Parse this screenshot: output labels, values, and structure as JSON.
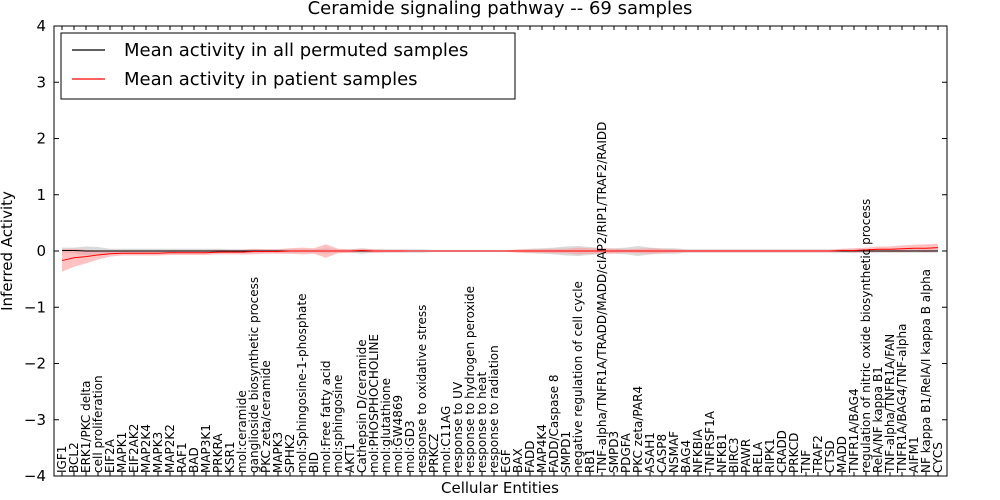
{
  "chart_data": {
    "type": "line",
    "title": "Ceramide signaling pathway -- 69 samples",
    "xlabel": "Cellular Entities",
    "ylabel": "Inferred Activity",
    "ylim": [
      -4,
      4
    ],
    "yticks": [
      -4,
      -3,
      -2,
      -1,
      0,
      1,
      2,
      3,
      4
    ],
    "legend_position": "top-left",
    "categories": [
      "IGF1",
      "BCL2",
      "ERK1/PKC delta",
      "cell proliferation",
      "EIF2A",
      "MAPK1",
      "EIF2AK2",
      "MAP2K4",
      "MAPK3",
      "MAP2K2",
      "RAF1",
      "BAD",
      "MAP3K1",
      "PRKRA",
      "KSR1",
      "mol:ceramide",
      "ganglioside biosynthetic process",
      "PKC zeta/ceramide",
      "MAPK3",
      "SPHK2",
      "mol:Sphingosine-1-phosphate",
      "BID",
      "mol:Free fatty acid",
      "mol:sphingosine",
      "AKT1",
      "Cathepsin D/ceramide",
      "mol:PHOSPHOCHOLINE",
      "mol:glutathione",
      "mol:GW4869",
      "mol:GD3",
      "response to oxidative stress",
      "PRKCZ",
      "mol:C11AG",
      "response to UV",
      "response to hydrogen peroxide",
      "response to heat",
      "response to radiation",
      "EGF",
      "BAX",
      "FADD",
      "MAP4K4",
      "FADD/Caspase 8",
      "SMPD1",
      "negative regulation of cell cycle",
      "RB1",
      "TNF-alpha/TNFR1A/TRADD/MADD/cIAP2/RIP1/TRAF2/RAIDD",
      "SMPD3",
      "PDGFA",
      "PKC zeta/PAR4",
      "ASAH1",
      "CASP8",
      "NSMAF",
      "BAG4",
      "NFKBIA",
      "TNFRSF1A",
      "NFKB1",
      "BIRC3",
      "PAWR",
      "RELA",
      "RIPK1",
      "CRADD",
      "PRKCD",
      "TNF",
      "TRAF2",
      "CTSD",
      "MADD",
      "TNFR1A/BAG4",
      "regulation of nitric oxide biosynthetic process",
      "RelA/NF kappa B1",
      "TNF-alpha/TNFR1A/FAN",
      "TNFR1A/BAG4/TNF-alpha",
      "AIFM1",
      "NF kappa B1/RelA/I kappa B alpha",
      "CYCS"
    ],
    "series": [
      {
        "name": "Mean activity in all permuted samples",
        "color": "#000000",
        "band_color": "#bbbbbb",
        "values": [
          0.01,
          0.01,
          0.0,
          0.0,
          0.0,
          0.0,
          0.0,
          0.0,
          0.0,
          0.0,
          0.0,
          0.0,
          0.0,
          0.0,
          0.0,
          0.0,
          0.0,
          0.0,
          0.0,
          0.0,
          0.0,
          0.0,
          0.0,
          0.0,
          0.0,
          0.0,
          0.0,
          0.0,
          0.0,
          0.0,
          0.0,
          0.0,
          0.0,
          0.0,
          0.0,
          0.0,
          0.0,
          0.0,
          0.0,
          0.0,
          0.0,
          0.0,
          0.0,
          0.0,
          0.0,
          0.0,
          0.0,
          0.0,
          0.0,
          0.0,
          0.0,
          0.0,
          0.0,
          0.0,
          0.0,
          0.0,
          0.0,
          0.0,
          0.0,
          0.0,
          0.0,
          0.0,
          0.0,
          0.0,
          0.0,
          0.0,
          0.0,
          0.0,
          0.0,
          0.0,
          0.0,
          0.0,
          0.0,
          0.0
        ],
        "band": [
          0.05,
          0.05,
          0.08,
          0.07,
          0.04,
          0.04,
          0.04,
          0.04,
          0.04,
          0.04,
          0.04,
          0.04,
          0.04,
          0.04,
          0.03,
          0.03,
          0.03,
          0.03,
          0.03,
          0.03,
          0.03,
          0.03,
          0.05,
          0.03,
          0.03,
          0.05,
          0.03,
          0.03,
          0.03,
          0.03,
          0.03,
          0.02,
          0.02,
          0.02,
          0.02,
          0.02,
          0.02,
          0.02,
          0.02,
          0.04,
          0.05,
          0.06,
          0.08,
          0.09,
          0.07,
          0.05,
          0.05,
          0.06,
          0.09,
          0.06,
          0.05,
          0.05,
          0.03,
          0.03,
          0.03,
          0.03,
          0.03,
          0.03,
          0.03,
          0.03,
          0.03,
          0.03,
          0.03,
          0.03,
          0.03,
          0.03,
          0.03,
          0.03,
          0.03,
          0.03,
          0.03,
          0.03,
          0.03,
          0.03
        ]
      },
      {
        "name": "Mean activity in patient samples",
        "color": "#ff0000",
        "band_color": "#ff9999",
        "values": [
          -0.17,
          -0.12,
          -0.1,
          -0.07,
          -0.05,
          -0.04,
          -0.04,
          -0.04,
          -0.04,
          -0.03,
          -0.03,
          -0.03,
          -0.03,
          -0.02,
          -0.02,
          -0.02,
          -0.01,
          -0.01,
          -0.01,
          0.0,
          0.0,
          0.0,
          0.0,
          0.0,
          0.0,
          0.01,
          0.0,
          0.0,
          0.0,
          0.0,
          0.0,
          0.0,
          0.0,
          0.0,
          0.0,
          0.0,
          0.0,
          0.0,
          0.0,
          0.0,
          0.0,
          0.0,
          0.0,
          0.0,
          0.0,
          0.0,
          0.0,
          0.0,
          0.0,
          0.0,
          0.0,
          0.0,
          0.0,
          0.0,
          0.0,
          0.0,
          0.0,
          0.0,
          0.0,
          0.0,
          0.0,
          0.0,
          0.0,
          0.0,
          0.0,
          0.01,
          0.01,
          0.02,
          0.03,
          0.03,
          0.04,
          0.05,
          0.05,
          0.06
        ],
        "band": [
          0.2,
          0.16,
          0.12,
          0.08,
          0.05,
          0.04,
          0.04,
          0.04,
          0.04,
          0.04,
          0.04,
          0.04,
          0.04,
          0.04,
          0.04,
          0.04,
          0.05,
          0.04,
          0.04,
          0.05,
          0.06,
          0.05,
          0.12,
          0.04,
          0.03,
          0.03,
          0.03,
          0.02,
          0.02,
          0.01,
          0.01,
          0.01,
          0.01,
          0.01,
          0.01,
          0.01,
          0.01,
          0.01,
          0.03,
          0.03,
          0.03,
          0.04,
          0.04,
          0.06,
          0.05,
          0.05,
          0.04,
          0.03,
          0.04,
          0.05,
          0.04,
          0.03,
          0.02,
          0.02,
          0.02,
          0.02,
          0.02,
          0.02,
          0.02,
          0.02,
          0.02,
          0.02,
          0.02,
          0.02,
          0.02,
          0.03,
          0.04,
          0.04,
          0.05,
          0.05,
          0.06,
          0.06,
          0.07,
          0.07
        ]
      }
    ]
  }
}
